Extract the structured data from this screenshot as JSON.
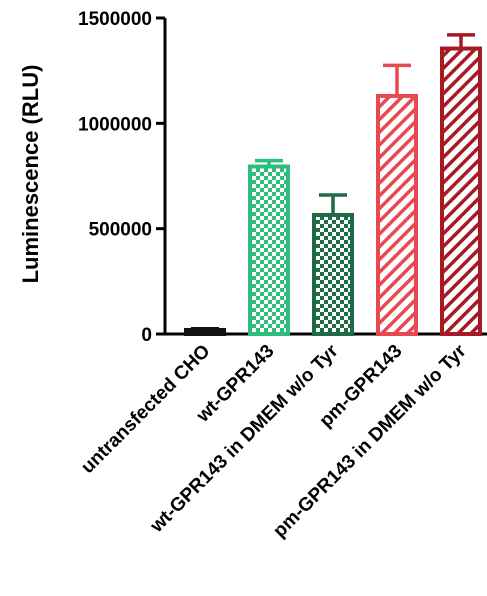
{
  "chart_data": {
    "type": "bar",
    "title": "",
    "xlabel": "",
    "ylabel": "Luminescence (RLU)",
    "ylim": [
      0,
      1500000
    ],
    "yticks": [
      "0",
      "500000",
      "1000000",
      "1500000"
    ],
    "ytick_values": [
      0,
      500000,
      1000000,
      1500000
    ],
    "categories": [
      "untransfected CHO",
      "wt-GPR143",
      "wt-GPR143 in DMEM w/o Tyr",
      "pm-GPR143",
      "pm-GPR143 in DMEM w/o Tyr"
    ],
    "values": [
      15000,
      795000,
      565000,
      1130000,
      1355000
    ],
    "errors": [
      10000,
      28000,
      95000,
      145000,
      65000
    ],
    "colors": [
      "#111111",
      "#2ebd7a",
      "#1e6b45",
      "#e8484f",
      "#a51a24"
    ],
    "patterns": [
      "solid",
      "checker",
      "checker",
      "hatch",
      "hatch"
    ],
    "grid": false,
    "legend": "none"
  }
}
